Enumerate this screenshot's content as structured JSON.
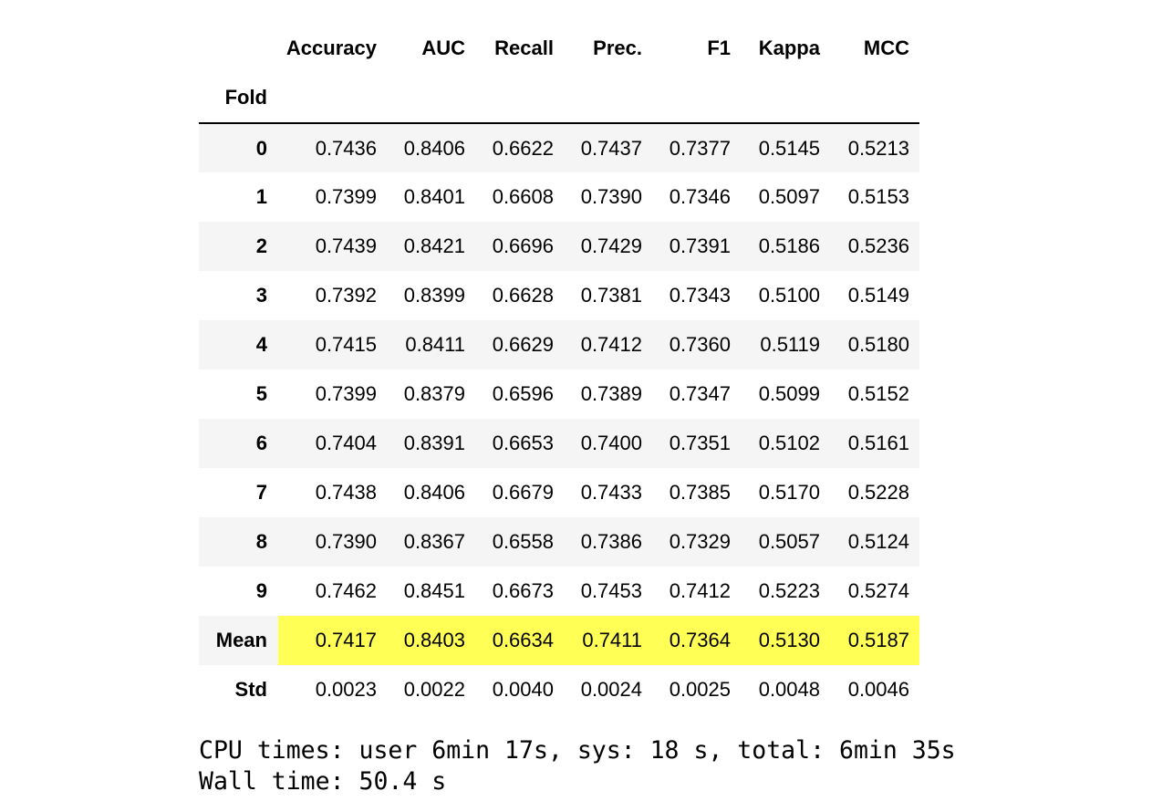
{
  "table": {
    "index_name": "Fold",
    "columns": [
      "Accuracy",
      "AUC",
      "Recall",
      "Prec.",
      "F1",
      "Kappa",
      "MCC"
    ],
    "rows": [
      {
        "label": "0",
        "values": [
          "0.7436",
          "0.8406",
          "0.6622",
          "0.7437",
          "0.7377",
          "0.5145",
          "0.5213"
        ],
        "highlight": false
      },
      {
        "label": "1",
        "values": [
          "0.7399",
          "0.8401",
          "0.6608",
          "0.7390",
          "0.7346",
          "0.5097",
          "0.5153"
        ],
        "highlight": false
      },
      {
        "label": "2",
        "values": [
          "0.7439",
          "0.8421",
          "0.6696",
          "0.7429",
          "0.7391",
          "0.5186",
          "0.5236"
        ],
        "highlight": false
      },
      {
        "label": "3",
        "values": [
          "0.7392",
          "0.8399",
          "0.6628",
          "0.7381",
          "0.7343",
          "0.5100",
          "0.5149"
        ],
        "highlight": false
      },
      {
        "label": "4",
        "values": [
          "0.7415",
          "0.8411",
          "0.6629",
          "0.7412",
          "0.7360",
          "0.5119",
          "0.5180"
        ],
        "highlight": false
      },
      {
        "label": "5",
        "values": [
          "0.7399",
          "0.8379",
          "0.6596",
          "0.7389",
          "0.7347",
          "0.5099",
          "0.5152"
        ],
        "highlight": false
      },
      {
        "label": "6",
        "values": [
          "0.7404",
          "0.8391",
          "0.6653",
          "0.7400",
          "0.7351",
          "0.5102",
          "0.5161"
        ],
        "highlight": false
      },
      {
        "label": "7",
        "values": [
          "0.7438",
          "0.8406",
          "0.6679",
          "0.7433",
          "0.7385",
          "0.5170",
          "0.5228"
        ],
        "highlight": false
      },
      {
        "label": "8",
        "values": [
          "0.7390",
          "0.8367",
          "0.6558",
          "0.7386",
          "0.7329",
          "0.5057",
          "0.5124"
        ],
        "highlight": false
      },
      {
        "label": "9",
        "values": [
          "0.7462",
          "0.8451",
          "0.6673",
          "0.7453",
          "0.7412",
          "0.5223",
          "0.5274"
        ],
        "highlight": false
      },
      {
        "label": "Mean",
        "values": [
          "0.7417",
          "0.8403",
          "0.6634",
          "0.7411",
          "0.7364",
          "0.5130",
          "0.5187"
        ],
        "highlight": true
      },
      {
        "label": "Std",
        "values": [
          "0.0023",
          "0.0022",
          "0.0040",
          "0.0024",
          "0.0025",
          "0.0048",
          "0.0046"
        ],
        "highlight": false
      }
    ],
    "highlight_color": "#ffff55",
    "stripe_color": "#f5f5f5"
  },
  "stdout": {
    "lines": [
      "CPU times: user 6min 17s, sys: 18 s, total: 6min 35s",
      "Wall time: 50.4 s"
    ]
  }
}
